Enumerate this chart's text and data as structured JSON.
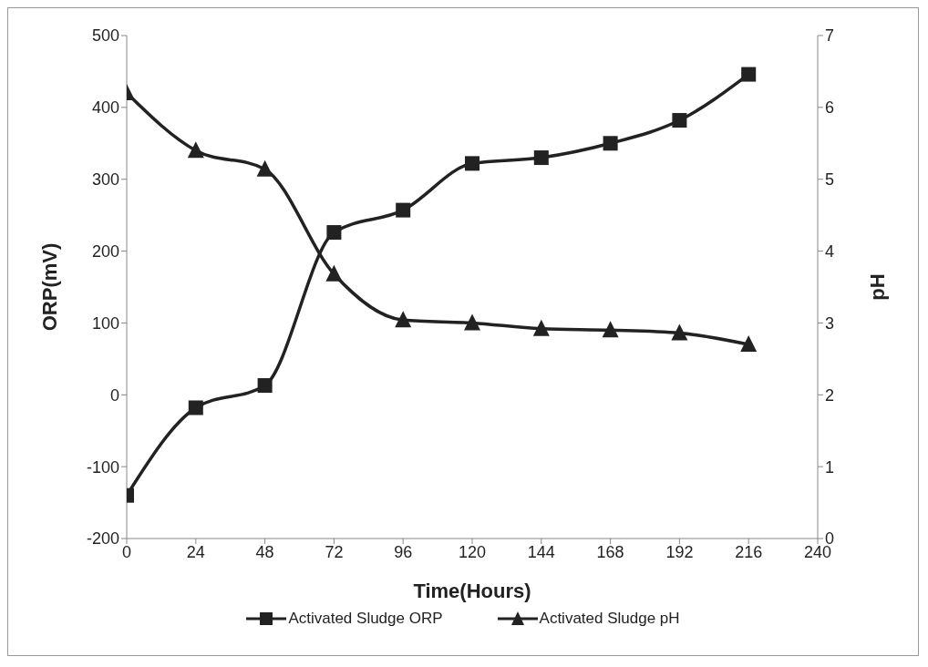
{
  "chart_data": {
    "type": "line",
    "xlabel": "Time(Hours)",
    "ylabel": "ORP(mV)",
    "y2label": "pH",
    "x": [
      0,
      24,
      48,
      72,
      96,
      120,
      144,
      168,
      192,
      216
    ],
    "series": [
      {
        "name": "Activated Sludge ORP",
        "color": "#222222",
        "marker": "square",
        "values": [
          -140,
          -18,
          13,
          226,
          257,
          322,
          330,
          350,
          382,
          446
        ]
      },
      {
        "name": "Activated Sludge pH",
        "color": "#222222",
        "marker": "triangle",
        "axis": "y2",
        "values": [
          6.2,
          5.4,
          5.14,
          3.68,
          3.04,
          3.0,
          2.92,
          2.9,
          2.86,
          2.7
        ]
      }
    ],
    "xlim": [
      0,
      240
    ],
    "xticks": [
      0,
      24,
      48,
      72,
      96,
      120,
      144,
      168,
      192,
      216,
      240
    ],
    "ylim": [
      -200,
      500
    ],
    "yticks": [
      -200,
      -100,
      0,
      100,
      200,
      300,
      400,
      500
    ],
    "y2lim": [
      0,
      7
    ],
    "y2ticks": [
      0,
      1,
      2,
      3,
      4,
      5,
      6,
      7
    ],
    "grid": false,
    "legend": "bottom",
    "line_style": "solid"
  }
}
